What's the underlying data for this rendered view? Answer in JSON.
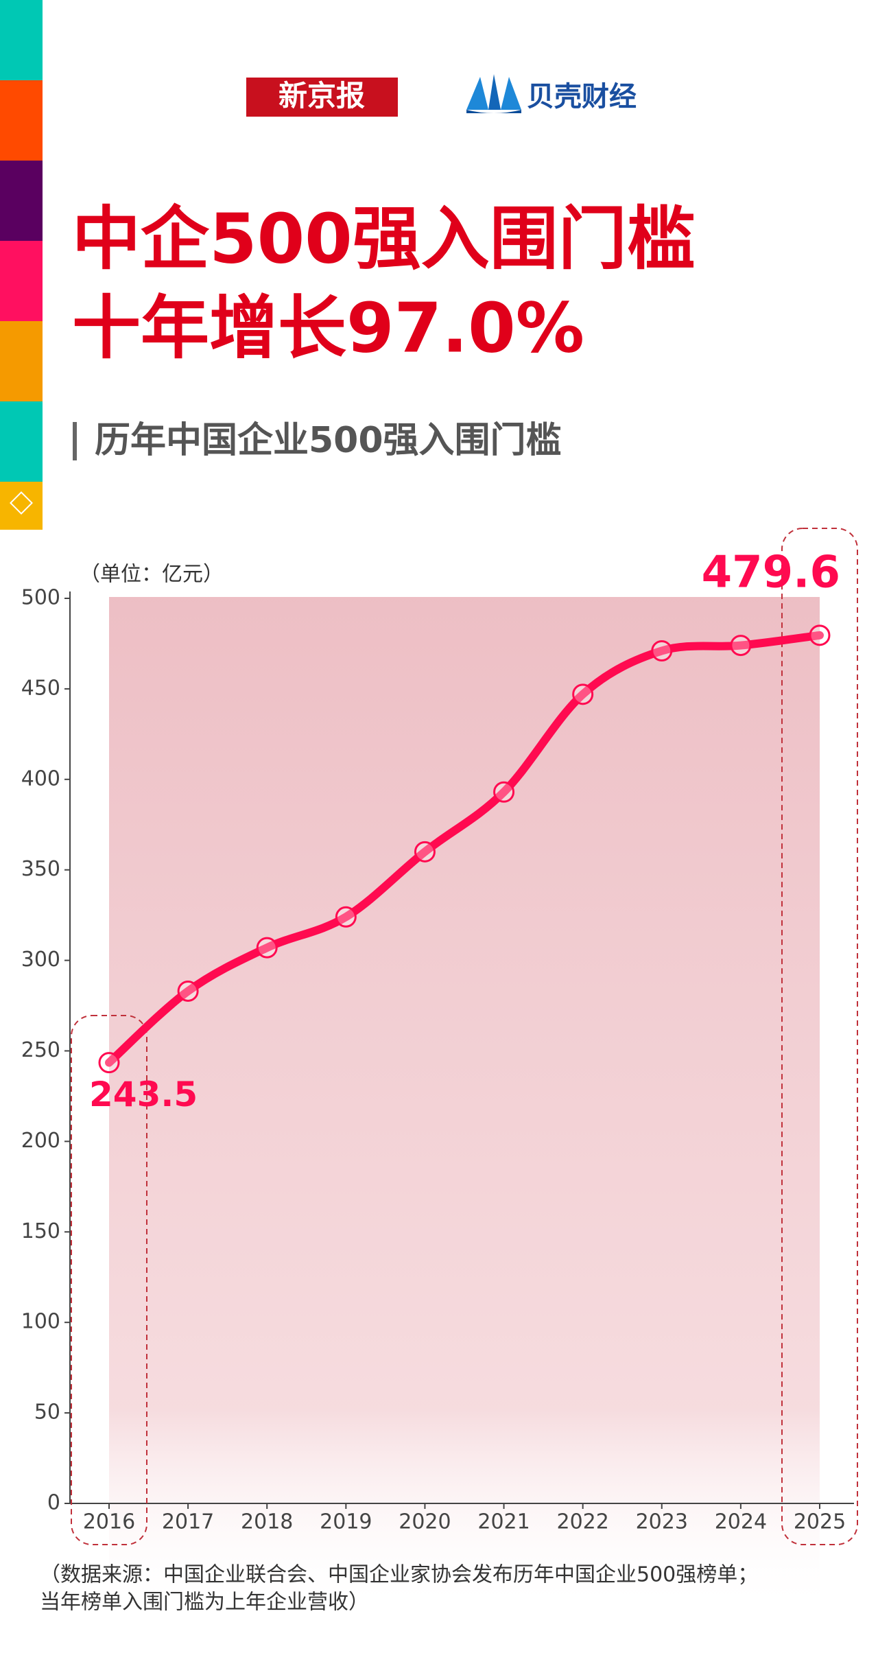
{
  "header": {
    "logo_left": "新京报",
    "logo_right": "贝壳财经"
  },
  "title": [
    "中企500强入围门槛",
    "十年增长97.0%"
  ],
  "subtitle": "历年中国企业500强入围门槛",
  "chart_data": {
    "type": "line",
    "unit_label": "（单位：亿元）",
    "categories": [
      "2016",
      "2017",
      "2018",
      "2019",
      "2020",
      "2021",
      "2022",
      "2023",
      "2024",
      "2025"
    ],
    "values": [
      243.5,
      283,
      307,
      324,
      360,
      393,
      447,
      471,
      474,
      479.6
    ],
    "color": "#ff0a50",
    "ylim": [
      0,
      500
    ],
    "yticks": [
      0,
      50,
      100,
      150,
      200,
      250,
      300,
      350,
      400,
      450,
      500
    ]
  },
  "source_note": [
    "（数据来源：中国企业联合会、中国企业家协会发布历年中国企业500强榜单；",
    "当年榜单入围门槛为上年企业营收）"
  ]
}
